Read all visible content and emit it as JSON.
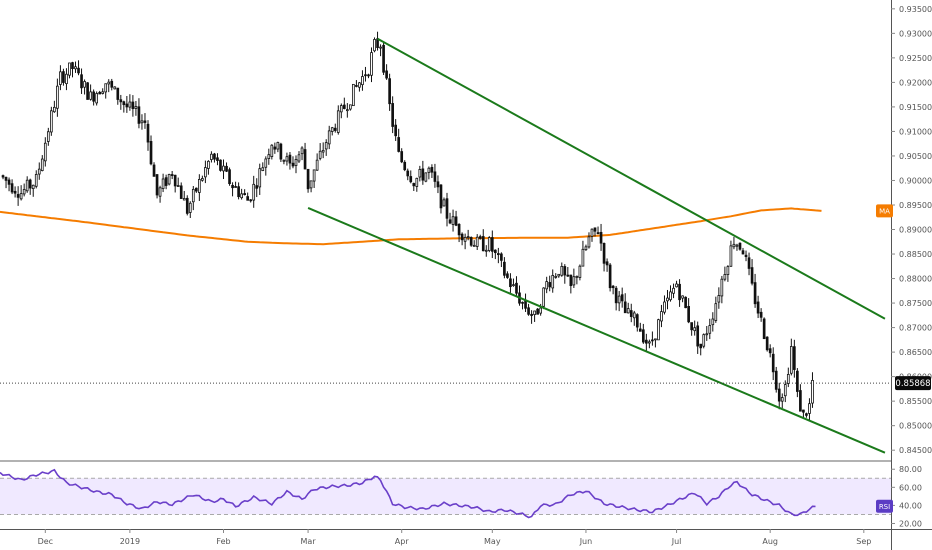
{
  "chart_data": [
    {
      "type": "candlestick",
      "title": "",
      "price_axis": {
        "ticks": [
          "0.93500",
          "0.93000",
          "0.92500",
          "0.92000",
          "0.91500",
          "0.91000",
          "0.90500",
          "0.90000",
          "0.89500",
          "0.89000",
          "0.88500",
          "0.88000",
          "0.87500",
          "0.87000",
          "0.86500",
          "0.86000",
          "0.85500",
          "0.85000",
          "0.84500"
        ],
        "range": [
          0.843,
          0.9368
        ]
      },
      "time_axis": {
        "ticks": [
          {
            "label": "Dec",
            "t": 13
          },
          {
            "label": "2019",
            "t": 41
          },
          {
            "label": "Feb",
            "t": 72
          },
          {
            "label": "Mar",
            "t": 100
          },
          {
            "label": "Apr",
            "t": 131
          },
          {
            "label": "May",
            "t": 161
          },
          {
            "label": "Jun",
            "t": 192
          },
          {
            "label": "Jul",
            "t": 222
          },
          {
            "label": "Aug",
            "t": 253
          },
          {
            "label": "Sep",
            "t": 284
          }
        ],
        "range": [
          -2,
          293
        ]
      },
      "last_price": "0.85868",
      "last_price_value": 0.85868,
      "ma_label": "MA",
      "moving_average": {
        "t": [
          -2,
          10,
          25,
          45,
          60,
          80,
          92,
          105,
          115,
          130,
          150,
          170,
          185,
          200,
          215,
          230,
          240,
          250,
          260,
          270
        ],
        "v": [
          0.8936,
          0.8927,
          0.8916,
          0.89,
          0.8888,
          0.8875,
          0.8872,
          0.887,
          0.8874,
          0.888,
          0.8882,
          0.8883,
          0.8883,
          0.8889,
          0.8903,
          0.8917,
          0.8927,
          0.8939,
          0.8943,
          0.8938
        ]
      },
      "trend_channel": [
        {
          "from": {
            "t": 123,
            "v": 0.9289
          },
          "to": {
            "t": 291,
            "v": 0.8718
          }
        },
        {
          "from": {
            "t": 100,
            "v": 0.8944
          },
          "to": {
            "t": 291,
            "v": 0.8445
          }
        }
      ],
      "waypoints": {
        "t": [
          -2,
          5,
          10,
          18,
          22,
          28,
          33,
          40,
          46,
          50,
          55,
          60,
          68,
          75,
          80,
          83,
          88,
          94,
          98,
          100,
          106,
          112,
          116,
          120,
          122,
          124,
          127,
          130,
          135,
          140,
          146,
          150,
          156,
          160,
          166,
          171,
          175,
          179,
          183,
          187,
          193,
          196,
          200,
          205,
          209,
          213,
          218,
          222,
          226,
          230,
          234,
          238,
          241,
          244,
          247,
          251,
          254,
          256,
          258,
          260,
          262,
          264,
          266,
          267
        ],
        "v": [
          0.901,
          0.8975,
          0.9,
          0.921,
          0.923,
          0.917,
          0.92,
          0.915,
          0.912,
          0.897,
          0.902,
          0.894,
          0.905,
          0.899,
          0.896,
          0.9,
          0.908,
          0.903,
          0.906,
          0.899,
          0.908,
          0.915,
          0.919,
          0.923,
          0.9275,
          0.928,
          0.915,
          0.905,
          0.9,
          0.902,
          0.893,
          0.89,
          0.887,
          0.887,
          0.88,
          0.875,
          0.872,
          0.879,
          0.882,
          0.878,
          0.888,
          0.89,
          0.879,
          0.873,
          0.871,
          0.866,
          0.874,
          0.879,
          0.872,
          0.866,
          0.873,
          0.882,
          0.888,
          0.886,
          0.878,
          0.869,
          0.862,
          0.856,
          0.858,
          0.866,
          0.856,
          0.852,
          0.854,
          0.859
        ]
      }
    },
    {
      "type": "line",
      "name": "RSI",
      "label": "RSI",
      "ticks": [
        "80.00",
        "60.00",
        "40.00",
        "20.00"
      ],
      "range": [
        15,
        88
      ],
      "band": [
        30,
        70
      ],
      "t": [
        -2,
        5,
        10,
        16,
        20,
        25,
        30,
        35,
        40,
        45,
        50,
        55,
        62,
        68,
        72,
        76,
        82,
        88,
        93,
        98,
        102,
        108,
        113,
        118,
        122,
        124,
        128,
        132,
        138,
        145,
        150,
        155,
        160,
        165,
        170,
        174,
        177,
        182,
        187,
        192,
        198,
        204,
        209,
        214,
        219,
        224,
        228,
        232,
        236,
        239,
        242,
        244,
        247,
        252,
        256,
        260,
        263,
        266,
        268
      ],
      "v": [
        76,
        68,
        74,
        78,
        65,
        60,
        55,
        52,
        42,
        36,
        44,
        41,
        52,
        44,
        47,
        39,
        49,
        42,
        55,
        47,
        58,
        61,
        62,
        65,
        72,
        68,
        42,
        38,
        36,
        42,
        40,
        38,
        33,
        35,
        31,
        27,
        40,
        41,
        52,
        56,
        42,
        38,
        35,
        33,
        40,
        48,
        54,
        42,
        50,
        60,
        66,
        60,
        52,
        45,
        40,
        30,
        30,
        36,
        39
      ]
    }
  ]
}
